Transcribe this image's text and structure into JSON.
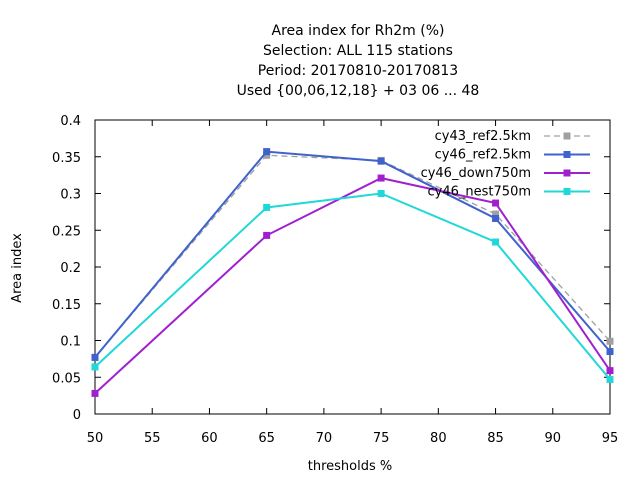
{
  "chart_data": {
    "type": "line",
    "title_lines": [
      "Area index  for Rh2m (%)",
      "Selection: ALL    115 stations",
      "Period: 20170810-20170813",
      "Used {00,06,12,18} + 03 06 ... 48"
    ],
    "xlabel": "thresholds %",
    "ylabel": "Area index",
    "xlim": [
      50,
      95
    ],
    "ylim": [
      0,
      0.4
    ],
    "x_ticks": [
      50,
      55,
      60,
      65,
      70,
      75,
      80,
      85,
      90,
      95
    ],
    "y_ticks": [
      0,
      0.05,
      0.1,
      0.15,
      0.2,
      0.25,
      0.3,
      0.35,
      0.4
    ],
    "y_tick_labels": [
      "0",
      "0.05",
      "0.1",
      "0.15",
      "0.2",
      "0.25",
      "0.3",
      "0.35",
      "0.4"
    ],
    "x": [
      50,
      65,
      75,
      85,
      95
    ],
    "legend_position": "top-right",
    "grid": false,
    "series": [
      {
        "name": "cy43_ref2.5km",
        "color": "#a0a0a0",
        "dashed": true,
        "values": [
          0.077,
          0.352,
          0.345,
          0.272,
          0.099
        ]
      },
      {
        "name": "cy46_ref2.5km",
        "color": "#3f62cc",
        "dashed": false,
        "values": [
          0.077,
          0.357,
          0.344,
          0.266,
          0.085
        ]
      },
      {
        "name": "cy46_down750m",
        "color": "#a020d0",
        "dashed": false,
        "values": [
          0.028,
          0.243,
          0.321,
          0.287,
          0.059
        ]
      },
      {
        "name": "cy46_nest750m",
        "color": "#20d8d8",
        "dashed": false,
        "values": [
          0.064,
          0.281,
          0.3,
          0.234,
          0.047
        ]
      }
    ]
  }
}
